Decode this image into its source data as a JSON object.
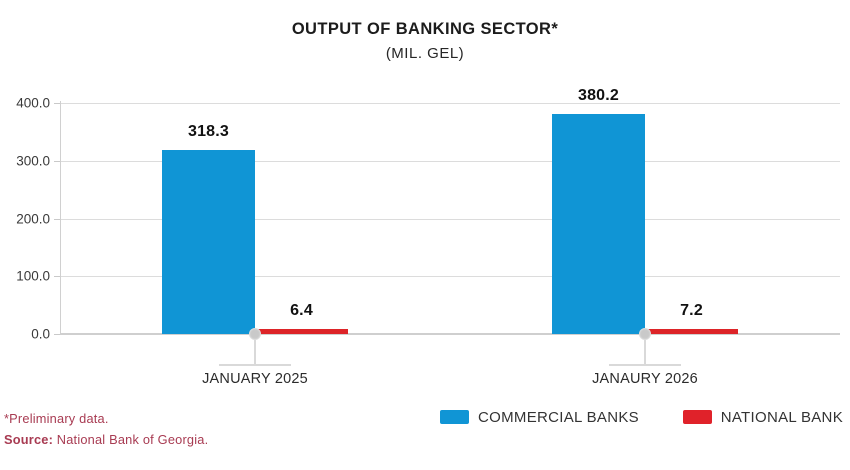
{
  "title": "OUTPUT OF BANKING SECTOR*",
  "subtitle": "(MIL. GEL)",
  "chart_data": {
    "type": "bar",
    "categories": [
      "JANUARY 2025",
      "JANAURY 2026"
    ],
    "series": [
      {
        "name": "COMMERCIAL BANKS",
        "values": [
          318.3,
          380.2
        ],
        "color": "#1095D5"
      },
      {
        "name": "NATIONAL BANK",
        "values": [
          6.4,
          7.2
        ],
        "color": "#DD2428"
      }
    ],
    "value_labels": [
      [
        "318.3",
        "380.2"
      ],
      [
        "6.4",
        "7.2"
      ]
    ],
    "title": "OUTPUT OF BANKING SECTOR*",
    "subtitle": "(MIL. GEL)",
    "xlabel": "",
    "ylabel": "",
    "ylim": [
      0,
      400
    ],
    "yticks": [
      "0.0",
      "100.0",
      "200.0",
      "300.0",
      "400.0"
    ],
    "grid": true,
    "legend_position": "bottom-right"
  },
  "legend": {
    "items": [
      {
        "label": "COMMERCIAL BANKS",
        "color": "#1095D5"
      },
      {
        "label": "NATIONAL BANK",
        "color": "#E0222A"
      }
    ]
  },
  "footnotes": {
    "preliminary": "*Preliminary data.",
    "source_label": "Source:",
    "source_text": " National Bank of Georgia."
  },
  "colors": {
    "commercial_banks": "#1095D5",
    "national_bank": "#DD2428",
    "footnote_text": "#A83B52",
    "grid": "#DCDCDC",
    "marker": "#C9C9C9",
    "title_text": "#1C1C1C"
  }
}
